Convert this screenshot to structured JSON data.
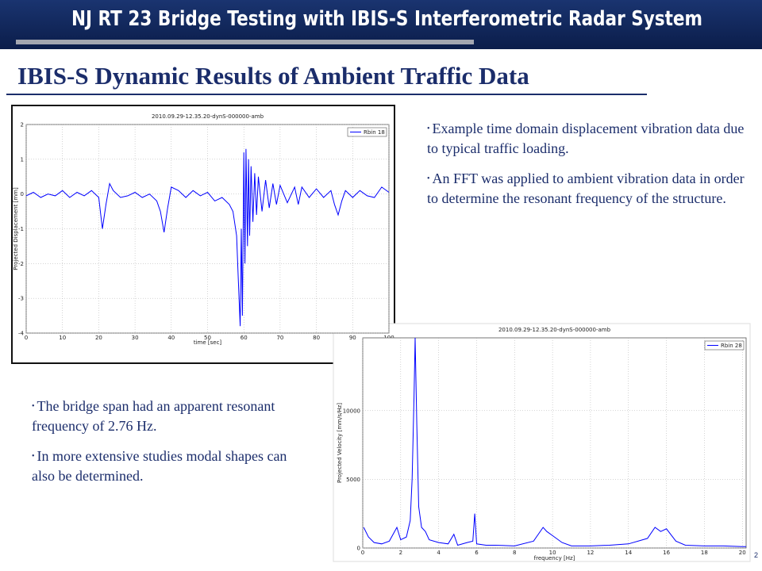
{
  "header": {
    "title": "NJ  RT 23 Bridge Testing with IBIS-S Interferometric  Radar System"
  },
  "section_title": "IBIS-S Dynamic Results of Ambient Traffic Data",
  "bullets_top": [
    "Example time domain displacement vibration data due to typical traffic loading.",
    "An FFT was applied to ambient vibration data in order to determine the resonant frequency of the structure."
  ],
  "bullets_bottom": [
    "The bridge span had an apparent resonant frequency of 2.76 Hz.",
    "In more extensive studies modal shapes can also be determined."
  ],
  "page_number": "2",
  "chart_data": [
    {
      "type": "line",
      "title": "2010.09.29-12.35.20-dynS-000000-amb",
      "x_label": "time [sec]",
      "y_label": "Projected Displacement [mm]",
      "x": [
        0,
        2,
        4,
        6,
        8,
        10,
        12,
        14,
        16,
        18,
        20,
        21,
        22,
        23,
        24,
        26,
        28,
        30,
        32,
        34,
        36,
        37,
        38,
        39,
        40,
        42,
        44,
        46,
        48,
        50,
        52,
        54,
        56,
        57,
        58,
        58.5,
        59,
        59.3,
        59.6,
        60,
        60.3,
        60.6,
        61,
        61.3,
        61.6,
        62,
        62.5,
        63,
        63.5,
        64,
        65,
        66,
        67,
        68,
        69,
        70,
        72,
        74,
        75,
        76,
        78,
        80,
        82,
        84,
        85,
        86,
        87,
        88,
        90,
        92,
        94,
        96,
        98,
        100
      ],
      "series": [
        {
          "name": "Rbin 18",
          "color": "#0000ff",
          "values": [
            -0.05,
            0.05,
            -0.1,
            0,
            -0.05,
            0.1,
            -0.1,
            0.05,
            -0.05,
            0.1,
            -0.1,
            -1.0,
            -0.3,
            0.3,
            0.1,
            -0.1,
            -0.05,
            0.05,
            -0.1,
            0,
            -0.2,
            -0.5,
            -1.1,
            -0.4,
            0.2,
            0.1,
            -0.1,
            0.1,
            -0.05,
            0.05,
            -0.2,
            -0.1,
            -0.3,
            -0.5,
            -1.2,
            -2.5,
            -3.8,
            -1.0,
            -3.5,
            1.2,
            -2.0,
            1.3,
            -1.5,
            1.0,
            -1.2,
            0.8,
            -0.8,
            0.6,
            -0.6,
            0.5,
            -0.5,
            0.4,
            -0.4,
            0.3,
            -0.3,
            0.25,
            -0.25,
            0.2,
            -0.3,
            0.2,
            -0.1,
            0.15,
            -0.1,
            0.1,
            -0.3,
            -0.6,
            -0.2,
            0.1,
            -0.1,
            0.1,
            -0.05,
            -0.1,
            0.2,
            0.05
          ]
        }
      ],
      "xlim": [
        0,
        100
      ],
      "xticks": [
        0,
        10,
        20,
        30,
        40,
        50,
        60,
        70,
        80,
        90,
        100
      ],
      "ylim": [
        -4,
        2
      ],
      "yticks": [
        -4,
        -3,
        -2,
        -1,
        0,
        1,
        2
      ],
      "grid": true,
      "legend": "top-right"
    },
    {
      "type": "line",
      "title": "2010.09.29-12.35.20-dynS-000000-amb",
      "x_label": "frequency [Hz]",
      "y_label": "Projected Velocity [mm/s/Hz]",
      "x": [
        0.05,
        0.3,
        0.6,
        1.0,
        1.4,
        1.8,
        2.0,
        2.3,
        2.5,
        2.6,
        2.7,
        2.76,
        2.85,
        2.95,
        3.1,
        3.3,
        3.5,
        4.0,
        4.5,
        4.8,
        5.0,
        5.5,
        5.8,
        5.9,
        6.0,
        6.5,
        7.0,
        8.0,
        9.0,
        9.5,
        9.7,
        10.0,
        10.5,
        11.0,
        12,
        13,
        14,
        15,
        15.4,
        15.7,
        16.0,
        16.5,
        17,
        18,
        19,
        20,
        20.2
      ],
      "series": [
        {
          "name": "Rbin 28",
          "color": "#0000ff",
          "values": [
            1500,
            800,
            400,
            300,
            500,
            1500,
            600,
            800,
            2000,
            5000,
            11000,
            15300,
            9000,
            3000,
            1500,
            1200,
            600,
            400,
            300,
            1000,
            200,
            400,
            500,
            2500,
            300,
            200,
            200,
            150,
            500,
            1500,
            1200,
            900,
            400,
            150,
            150,
            200,
            300,
            700,
            1500,
            1200,
            1400,
            500,
            200,
            150,
            150,
            100,
            100
          ]
        }
      ],
      "xlim": [
        0,
        20.2
      ],
      "xticks": [
        0,
        2,
        4,
        6,
        8,
        10,
        12,
        14,
        16,
        18,
        20
      ],
      "ylim": [
        0,
        15300
      ],
      "yticks": [
        0,
        5000,
        10000
      ],
      "grid": true,
      "legend": "top-right"
    }
  ]
}
